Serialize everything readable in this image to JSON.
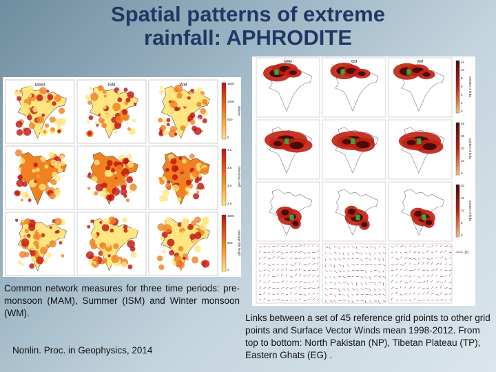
{
  "slide": {
    "title_line1": "Spatial patterns of extreme",
    "title_line2": "rainfall: APHRODITE",
    "left_caption": "Common network measures for three time periods: pre-monsoon (MAM), Summer (ISM) and Winter monsoon (WM).",
    "citation": "Nonlin. Proc. in Geophysics, 2014",
    "right_caption": "Links between a set of 45 reference grid points to other grid points and Surface Vector Winds mean 1998-2012. From top to bottom: North Pakistan (NP), Tibetan Plateau (TP), Eastern Ghats (EG) ."
  },
  "left_figure": {
    "column_labels": [
      "MAM",
      "ISM",
      "WM"
    ],
    "colorbar_ticks": [
      [
        "1500",
        "1000",
        "500",
        "0"
      ],
      [
        "4.0",
        "3.5",
        "3.0",
        "2.5"
      ],
      [
        "1000",
        "500",
        "0"
      ]
    ],
    "colorbar_labels": [
      "degree",
      "clustering coeff.",
      "average link length"
    ],
    "colors": {
      "low": "#ffe680",
      "mid": "#f08020",
      "high": "#c01010"
    }
  },
  "right_figure": {
    "column_labels": [
      "MAM",
      "ISM",
      "WM"
    ],
    "colorbar_ticks": [
      [
        "12",
        "10",
        "8",
        "6",
        "4",
        "2",
        "0"
      ],
      [
        "45",
        "30",
        "20",
        "10",
        "0"
      ],
      [
        "20",
        "15",
        "10",
        "5",
        "0"
      ]
    ],
    "colorbar_label": "number of links",
    "wind_scale": "10",
    "colors": {
      "dark": "#4a0a0a",
      "mid": "#c02010",
      "light": "#f6c080",
      "wind": "#7a1a1a"
    }
  }
}
